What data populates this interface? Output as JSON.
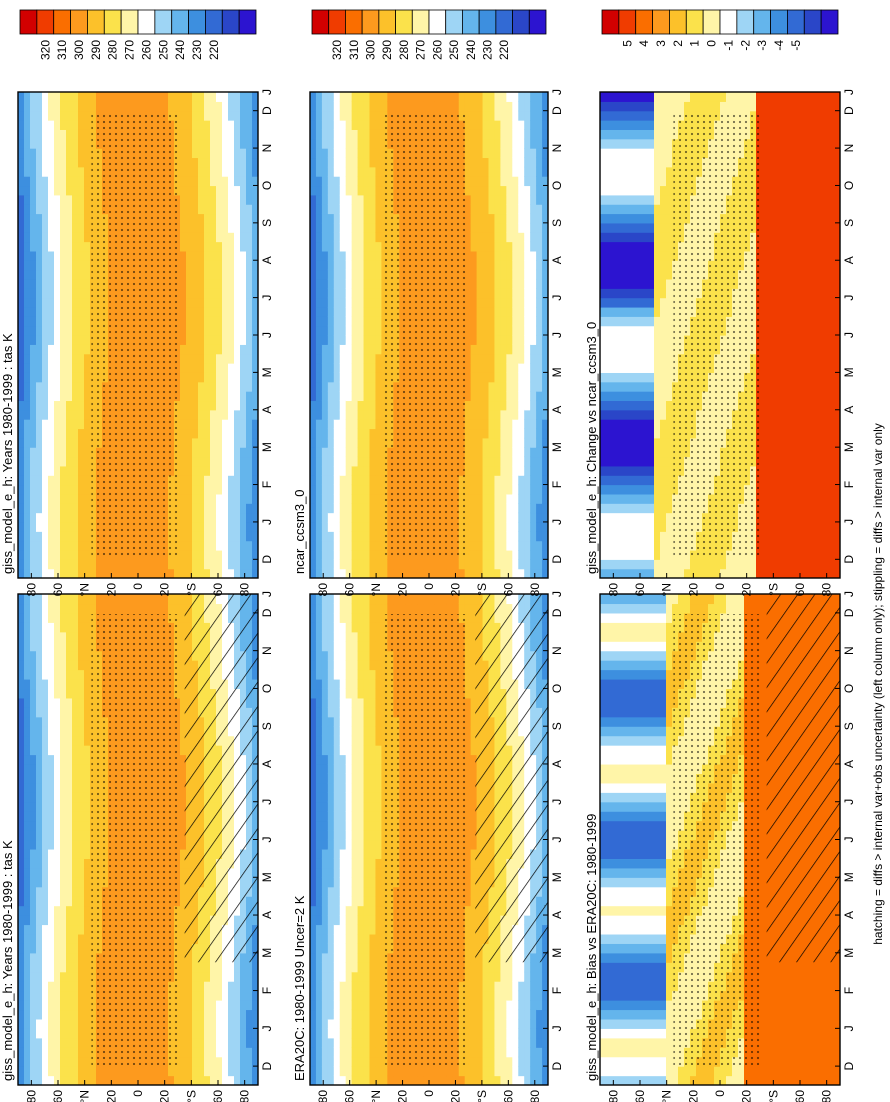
{
  "figure": {
    "caption": "hatching = diffs > internal var+obs uncertainty (left column only); stippling = diffs > internal var only"
  },
  "chart_data": [
    {
      "type": "heatmap",
      "title": "giss_model_e_h: Years 1980-1999 : tas K",
      "x_ticks": [
        "D",
        "J",
        "F",
        "M",
        "A",
        "M",
        "J",
        "J",
        "A",
        "S",
        "O",
        "N",
        "D",
        "J"
      ],
      "y_ticks": [
        "80",
        "60",
        "°N",
        "20",
        "0",
        "20",
        "°S",
        "60",
        "80"
      ],
      "colorbar": [
        "320",
        "310",
        "300",
        "290",
        "280",
        "270",
        "260",
        "250",
        "240",
        "230",
        "220"
      ],
      "colorbar_colors": [
        "#d20000",
        "#f03c00",
        "#fa6e00",
        "#fd9a1e",
        "#fcc12a",
        "#fbe24b",
        "#fff5a8",
        "#ffffff",
        "#9ed5f5",
        "#64b5ec",
        "#3d8fdf",
        "#326ad4",
        "#2a46c8",
        "#2c14d0"
      ],
      "field": "absolute",
      "hatch": true,
      "stipple": true
    },
    {
      "type": "heatmap",
      "title": "giss_model_e_h: Years 1980-1999 : tas K",
      "x_ticks": [
        "D",
        "J",
        "F",
        "M",
        "A",
        "M",
        "J",
        "J",
        "A",
        "S",
        "O",
        "N",
        "D",
        "J"
      ],
      "y_ticks": [
        "80",
        "60",
        "°N",
        "20",
        "0",
        "20",
        "°S",
        "60",
        "80"
      ],
      "colorbar": [
        "320",
        "310",
        "300",
        "290",
        "280",
        "270",
        "260",
        "250",
        "240",
        "230",
        "220"
      ],
      "colorbar_colors": [
        "#d20000",
        "#f03c00",
        "#fa6e00",
        "#fd9a1e",
        "#fcc12a",
        "#fbe24b",
        "#fff5a8",
        "#ffffff",
        "#9ed5f5",
        "#64b5ec",
        "#3d8fdf",
        "#326ad4",
        "#2a46c8",
        "#2c14d0"
      ],
      "field": "absolute",
      "hatch": false,
      "stipple": true
    },
    {
      "type": "heatmap",
      "title": "ERA20C: 1980-1999 Uncer=2 K",
      "x_ticks": [
        "D",
        "J",
        "F",
        "M",
        "A",
        "M",
        "J",
        "J",
        "A",
        "S",
        "O",
        "N",
        "D",
        "J"
      ],
      "y_ticks": [
        "80",
        "60",
        "°N",
        "20",
        "0",
        "20",
        "°S",
        "60",
        "80"
      ],
      "colorbar": [
        "320",
        "310",
        "300",
        "290",
        "280",
        "270",
        "260",
        "250",
        "240",
        "230",
        "220"
      ],
      "colorbar_colors": [
        "#d20000",
        "#f03c00",
        "#fa6e00",
        "#fd9a1e",
        "#fcc12a",
        "#fbe24b",
        "#fff5a8",
        "#ffffff",
        "#9ed5f5",
        "#64b5ec",
        "#3d8fdf",
        "#326ad4",
        "#2a46c8",
        "#2c14d0"
      ],
      "field": "absolute",
      "hatch": true,
      "stipple": true
    },
    {
      "type": "heatmap",
      "title": "ncar_ccsm3_0",
      "x_ticks": [
        "D",
        "J",
        "F",
        "M",
        "A",
        "M",
        "J",
        "J",
        "A",
        "S",
        "O",
        "N",
        "D",
        "J"
      ],
      "y_ticks": [
        "80",
        "60",
        "°N",
        "20",
        "0",
        "20",
        "°S",
        "60",
        "80"
      ],
      "colorbar": [
        "320",
        "310",
        "300",
        "290",
        "280",
        "270",
        "260",
        "250",
        "240",
        "230",
        "220"
      ],
      "colorbar_colors": [
        "#d20000",
        "#f03c00",
        "#fa6e00",
        "#fd9a1e",
        "#fcc12a",
        "#fbe24b",
        "#fff5a8",
        "#ffffff",
        "#9ed5f5",
        "#64b5ec",
        "#3d8fdf",
        "#326ad4",
        "#2a46c8",
        "#2c14d0"
      ],
      "field": "absolute",
      "hatch": false,
      "stipple": true
    },
    {
      "type": "heatmap",
      "title": "giss_model_e_h: Bias vs ERA20C: 1980-1999",
      "x_ticks": [
        "D",
        "J",
        "F",
        "M",
        "A",
        "M",
        "J",
        "J",
        "A",
        "S",
        "O",
        "N",
        "D",
        "J"
      ],
      "y_ticks": [
        "80",
        "60",
        "°N",
        "20",
        "0",
        "20",
        "°S",
        "60",
        "80"
      ],
      "colorbar": [
        "5",
        "4",
        "3",
        "2",
        "1",
        "0",
        "-1",
        "-2",
        "-3",
        "-4",
        "-5"
      ],
      "colorbar_colors": [
        "#d20000",
        "#f03c00",
        "#fa6e00",
        "#fd9a1e",
        "#fcc12a",
        "#fbe24b",
        "#fff5a8",
        "#ffffff",
        "#9ed5f5",
        "#64b5ec",
        "#3d8fdf",
        "#326ad4",
        "#2a46c8",
        "#2c14d0"
      ],
      "field": "bias",
      "hatch": true,
      "stipple": true
    },
    {
      "type": "heatmap",
      "title": "giss_model_e_h: Change vs ncar_ccsm3_0",
      "x_ticks": [
        "D",
        "J",
        "F",
        "M",
        "A",
        "M",
        "J",
        "J",
        "A",
        "S",
        "O",
        "N",
        "D",
        "J"
      ],
      "y_ticks": [
        "80",
        "60",
        "°N",
        "20",
        "0",
        "20",
        "°S",
        "60",
        "80"
      ],
      "colorbar": [
        "5",
        "4",
        "3",
        "2",
        "1",
        "0",
        "-1",
        "-2",
        "-3",
        "-4",
        "-5"
      ],
      "colorbar_colors": [
        "#d20000",
        "#f03c00",
        "#fa6e00",
        "#fd9a1e",
        "#fcc12a",
        "#fbe24b",
        "#fff5a8",
        "#ffffff",
        "#9ed5f5",
        "#64b5ec",
        "#3d8fdf",
        "#326ad4",
        "#2a46c8",
        "#2c14d0"
      ],
      "field": "change",
      "hatch": false,
      "stipple": true
    }
  ]
}
